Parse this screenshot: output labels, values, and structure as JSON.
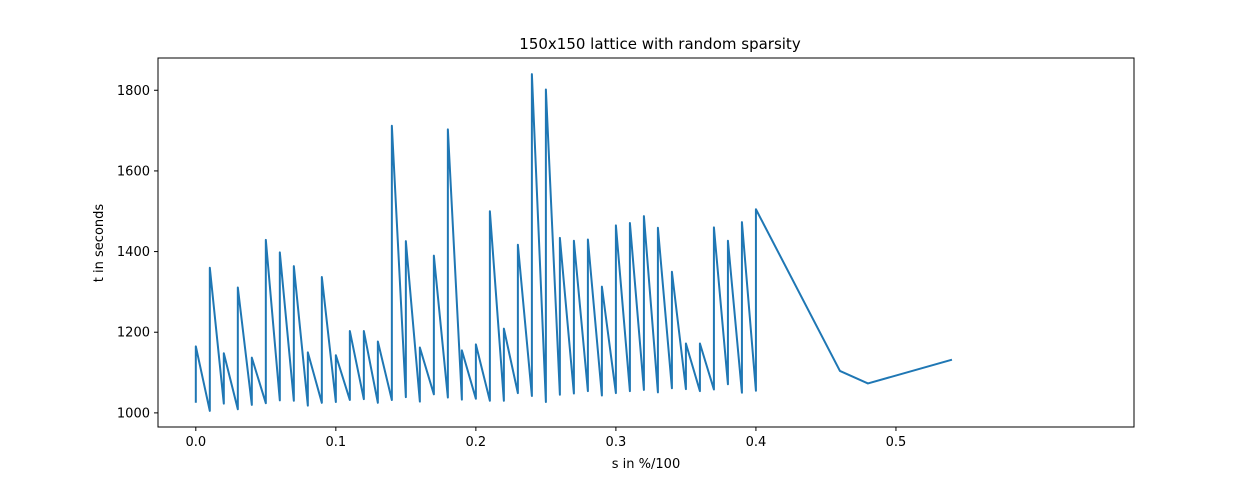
{
  "chart_data": {
    "type": "line",
    "title": "150x150 lattice with random sparsity",
    "xlabel": "s in %/100",
    "ylabel": "t in seconds",
    "xlim": [
      -0.027,
      0.67
    ],
    "ylim": [
      965,
      1880
    ],
    "xticks": [
      0.0,
      0.1,
      0.2,
      0.3,
      0.4,
      0.5
    ],
    "xtick_labels": [
      "0.0",
      "0.1",
      "0.2",
      "0.3",
      "0.4",
      "0.5"
    ],
    "yticks": [
      1000,
      1200,
      1400,
      1600,
      1800
    ],
    "ytick_labels": [
      "1000",
      "1200",
      "1400",
      "1600",
      "1800"
    ],
    "grid": false,
    "line_color": "#1f77b4",
    "series": [
      {
        "x": [
          0.0,
          0.0,
          0.01,
          0.01,
          0.02,
          0.02,
          0.03,
          0.03,
          0.04,
          0.04,
          0.05,
          0.05,
          0.06,
          0.06,
          0.07,
          0.07,
          0.08,
          0.08,
          0.09,
          0.09,
          0.1,
          0.1,
          0.11,
          0.11,
          0.12,
          0.12,
          0.13,
          0.13,
          0.14,
          0.14,
          0.15,
          0.15,
          0.16,
          0.16,
          0.17,
          0.17,
          0.18,
          0.18,
          0.19,
          0.19,
          0.2,
          0.2,
          0.21,
          0.21,
          0.22,
          0.22,
          0.23,
          0.23,
          0.24,
          0.24,
          0.25,
          0.25,
          0.26,
          0.26,
          0.27,
          0.27,
          0.28,
          0.28,
          0.29,
          0.29,
          0.3,
          0.3,
          0.31,
          0.31,
          0.32,
          0.32,
          0.33,
          0.33,
          0.34,
          0.34,
          0.35,
          0.35,
          0.36,
          0.36,
          0.37,
          0.37,
          0.38,
          0.38,
          0.39,
          0.39,
          0.4,
          0.4,
          0.46,
          0.48,
          0.54
        ],
        "y": [
          1025,
          1165,
          1005,
          1360,
          1023,
          1148,
          1009,
          1311,
          1020,
          1137,
          1024,
          1429,
          1031,
          1398,
          1030,
          1364,
          1018,
          1150,
          1025,
          1337,
          1027,
          1143,
          1032,
          1203,
          1034,
          1203,
          1025,
          1177,
          1032,
          1712,
          1039,
          1426,
          1028,
          1162,
          1046,
          1390,
          1038,
          1703,
          1033,
          1155,
          1035,
          1170,
          1030,
          1500,
          1030,
          1209,
          1049,
          1417,
          1042,
          1840,
          1027,
          1802,
          1045,
          1434,
          1048,
          1427,
          1054,
          1430,
          1043,
          1313,
          1049,
          1465,
          1054,
          1471,
          1057,
          1488,
          1051,
          1459,
          1061,
          1350,
          1059,
          1172,
          1054,
          1172,
          1058,
          1460,
          1071,
          1427,
          1050,
          1473,
          1055,
          1505,
          1104,
          1073,
          1132
        ]
      }
    ]
  }
}
